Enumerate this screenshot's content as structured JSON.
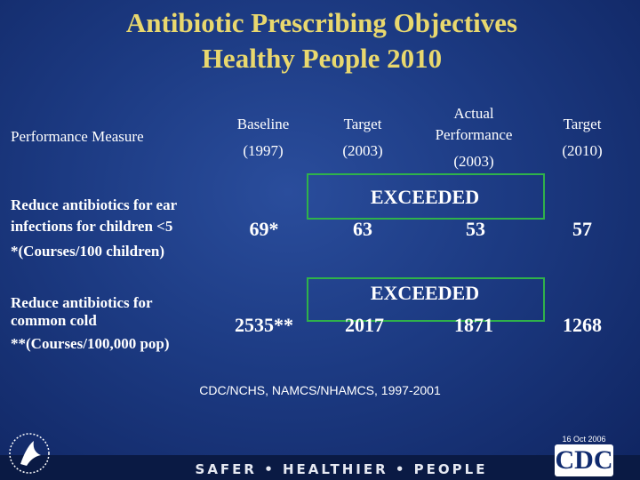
{
  "title": [
    "Antibiotic Prescribing Objectives",
    "Healthy People 2010"
  ],
  "table": {
    "headers": [
      [
        "Performance Measure"
      ],
      [
        "Baseline",
        "(1997)"
      ],
      [
        "Target",
        "(2003)"
      ],
      [
        "Actual",
        "Performance",
        "(2003)"
      ],
      [
        "Target",
        "(2010)"
      ]
    ],
    "rows": [
      {
        "measure": [
          "Reduce antibiotics for ear",
          "infections for children <5",
          "*(Courses/100 children)"
        ],
        "baseline": "69*",
        "status": "EXCEEDED",
        "target_2003": 63,
        "actual_2003": 53,
        "target_2010": 57
      },
      {
        "measure": [
          "Reduce antibiotics for",
          "common cold",
          "**(Courses/100,000 pop)"
        ],
        "baseline": "2535**",
        "status": "EXCEEDED",
        "target_2003": 2017,
        "actual_2003": 1871,
        "target_2010": 1268
      }
    ]
  },
  "source": "CDC/NCHS, NAMCS/NHAMCS, 1997-2001",
  "date": "16 Oct 2006",
  "footer": {
    "slogan": "SAFER • HEALTHIER • PEOPLE",
    "logo": "CDC"
  }
}
